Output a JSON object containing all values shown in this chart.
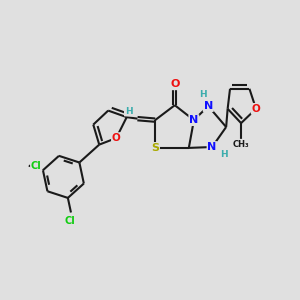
{
  "background_color": "#e0e0e0",
  "bond_color": "#1a1a1a",
  "bond_width": 1.5,
  "dbo": 0.07,
  "atom_colors": {
    "H": "#3aacac",
    "N": "#1010ff",
    "O": "#ee1010",
    "S": "#aaaa00",
    "Cl": "#10cc10"
  },
  "figsize": [
    3.0,
    3.0
  ],
  "dpi": 100
}
